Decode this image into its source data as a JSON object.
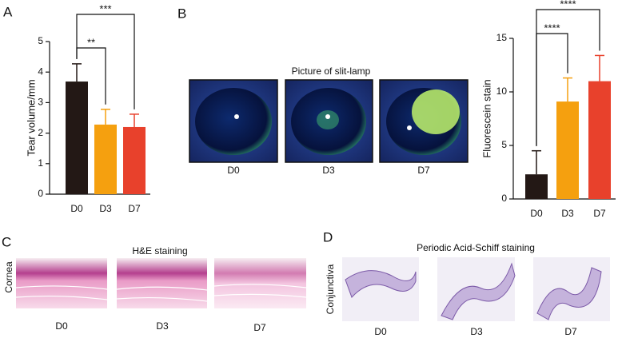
{
  "chart_data": [
    {
      "type": "bar",
      "ylabel": "Tear volume/mm",
      "categories": [
        "D0",
        "D3",
        "D7"
      ],
      "values": [
        3.69,
        2.28,
        2.2
      ],
      "errors": [
        0.58,
        0.5,
        0.42
      ],
      "colors": [
        "#231815",
        "#f5a00f",
        "#e8412c"
      ],
      "ylim": [
        0,
        5
      ],
      "yticks": [
        0,
        1,
        2,
        3,
        4,
        5
      ],
      "significance": [
        {
          "from": 0,
          "to": 1,
          "label": "**"
        },
        {
          "from": 0,
          "to": 2,
          "label": "***"
        }
      ]
    },
    {
      "type": "bar",
      "ylabel": "Fluorescein stain",
      "categories": [
        "D0",
        "D3",
        "D7"
      ],
      "values": [
        2.3,
        9.1,
        11.0
      ],
      "errors": [
        2.2,
        2.2,
        2.4
      ],
      "colors": [
        "#231815",
        "#f5a00f",
        "#e8412c"
      ],
      "ylim": [
        0,
        15
      ],
      "yticks": [
        0,
        5,
        10,
        15
      ],
      "significance": [
        {
          "from": 0,
          "to": 1,
          "label": "****"
        },
        {
          "from": 0,
          "to": 2,
          "label": "****"
        }
      ]
    }
  ],
  "figure": {
    "panel_letters": [
      "A",
      "B",
      "C",
      "D"
    ],
    "slit_lamp": {
      "title": "Picture of slit-lamp",
      "captions": [
        "D0",
        "D3",
        "D7"
      ]
    },
    "he": {
      "title": "H&E staining",
      "row_label": "Cornea",
      "captions": [
        "D0",
        "D3",
        "D7"
      ]
    },
    "pas": {
      "title": "Periodic Acid-Schiff staining",
      "row_label": "Conjunctiva",
      "captions": [
        "D0",
        "D3",
        "D7"
      ]
    }
  }
}
